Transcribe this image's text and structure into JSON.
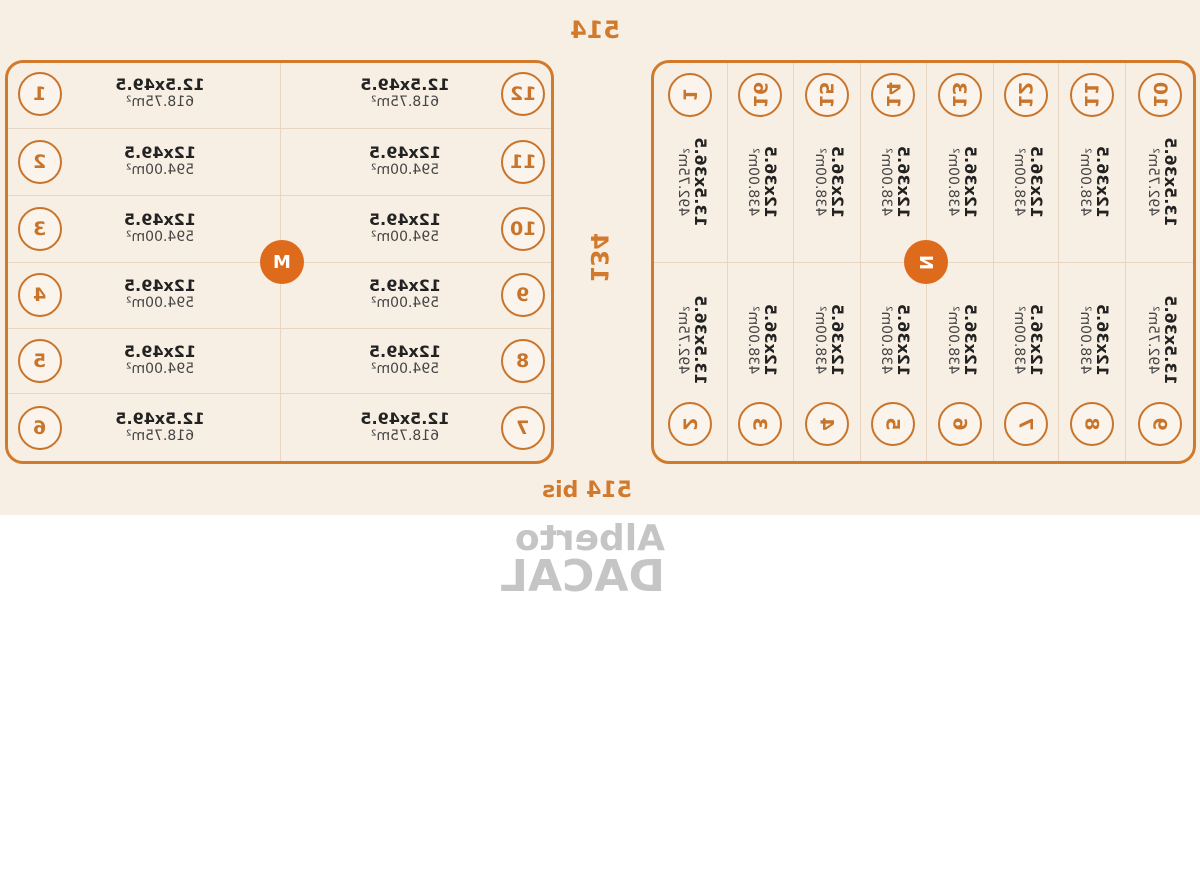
{
  "streets": {
    "top": "514",
    "bottom": "514 bis",
    "middle": "134"
  },
  "watermark": {
    "line1": "Alberto",
    "line2": "DACAL"
  },
  "colors": {
    "accent": "#d27a2c",
    "badge": "#de6a1c",
    "background": "#f8efe4"
  },
  "block_m": {
    "label": "M",
    "left_column": [
      {
        "lot": "1",
        "dims": "12.5x49.5",
        "area": "618.75m²"
      },
      {
        "lot": "2",
        "dims": "12x49.5",
        "area": "594.00m²"
      },
      {
        "lot": "3",
        "dims": "12x49.5",
        "area": "594.00m²"
      },
      {
        "lot": "4",
        "dims": "12x49.5",
        "area": "594.00m²"
      },
      {
        "lot": "5",
        "dims": "12x49.5",
        "area": "594.00m²"
      },
      {
        "lot": "6",
        "dims": "12.5x49.5",
        "area": "618.75m²"
      }
    ],
    "right_column": [
      {
        "lot": "12",
        "dims": "12.5x49.5",
        "area": "618.75m²"
      },
      {
        "lot": "11",
        "dims": "12x49.5",
        "area": "594.00m²"
      },
      {
        "lot": "10",
        "dims": "12x49.5",
        "area": "594.00m²"
      },
      {
        "lot": "9",
        "dims": "12x49.5",
        "area": "594.00m²"
      },
      {
        "lot": "8",
        "dims": "12x49.5",
        "area": "594.00m²"
      },
      {
        "lot": "7",
        "dims": "12.5x49.5",
        "area": "618.75m²"
      }
    ]
  },
  "block_n": {
    "label": "N",
    "top_row": [
      {
        "lot": "1",
        "dims": "13.5x36.5",
        "area": "492.75m²"
      },
      {
        "lot": "16",
        "dims": "12x36.5",
        "area": "438.00m²"
      },
      {
        "lot": "15",
        "dims": "12x36.5",
        "area": "438.00m²"
      },
      {
        "lot": "14",
        "dims": "12x36.5",
        "area": "438.00m²"
      },
      {
        "lot": "13",
        "dims": "12x36.5",
        "area": "438.00m²"
      },
      {
        "lot": "12",
        "dims": "12x36.5",
        "area": "438.00m²"
      },
      {
        "lot": "11",
        "dims": "12x36.5",
        "area": "438.00m²"
      },
      {
        "lot": "10",
        "dims": "13.5x36.5",
        "area": "492.75m²"
      }
    ],
    "bottom_row": [
      {
        "lot": "2",
        "dims": "13.5x36.5",
        "area": "492.75m²"
      },
      {
        "lot": "3",
        "dims": "12x36.5",
        "area": "438.00m²"
      },
      {
        "lot": "4",
        "dims": "12x36.5",
        "area": "438.00m²"
      },
      {
        "lot": "5",
        "dims": "12x36.5",
        "area": "438.00m²"
      },
      {
        "lot": "6",
        "dims": "12x36.5",
        "area": "438.00m²"
      },
      {
        "lot": "7",
        "dims": "12x36.5",
        "area": "438.00m²"
      },
      {
        "lot": "8",
        "dims": "12x36.5",
        "area": "438.00m²"
      },
      {
        "lot": "9",
        "dims": "13.5x36.5",
        "area": "492.75m²"
      }
    ]
  }
}
